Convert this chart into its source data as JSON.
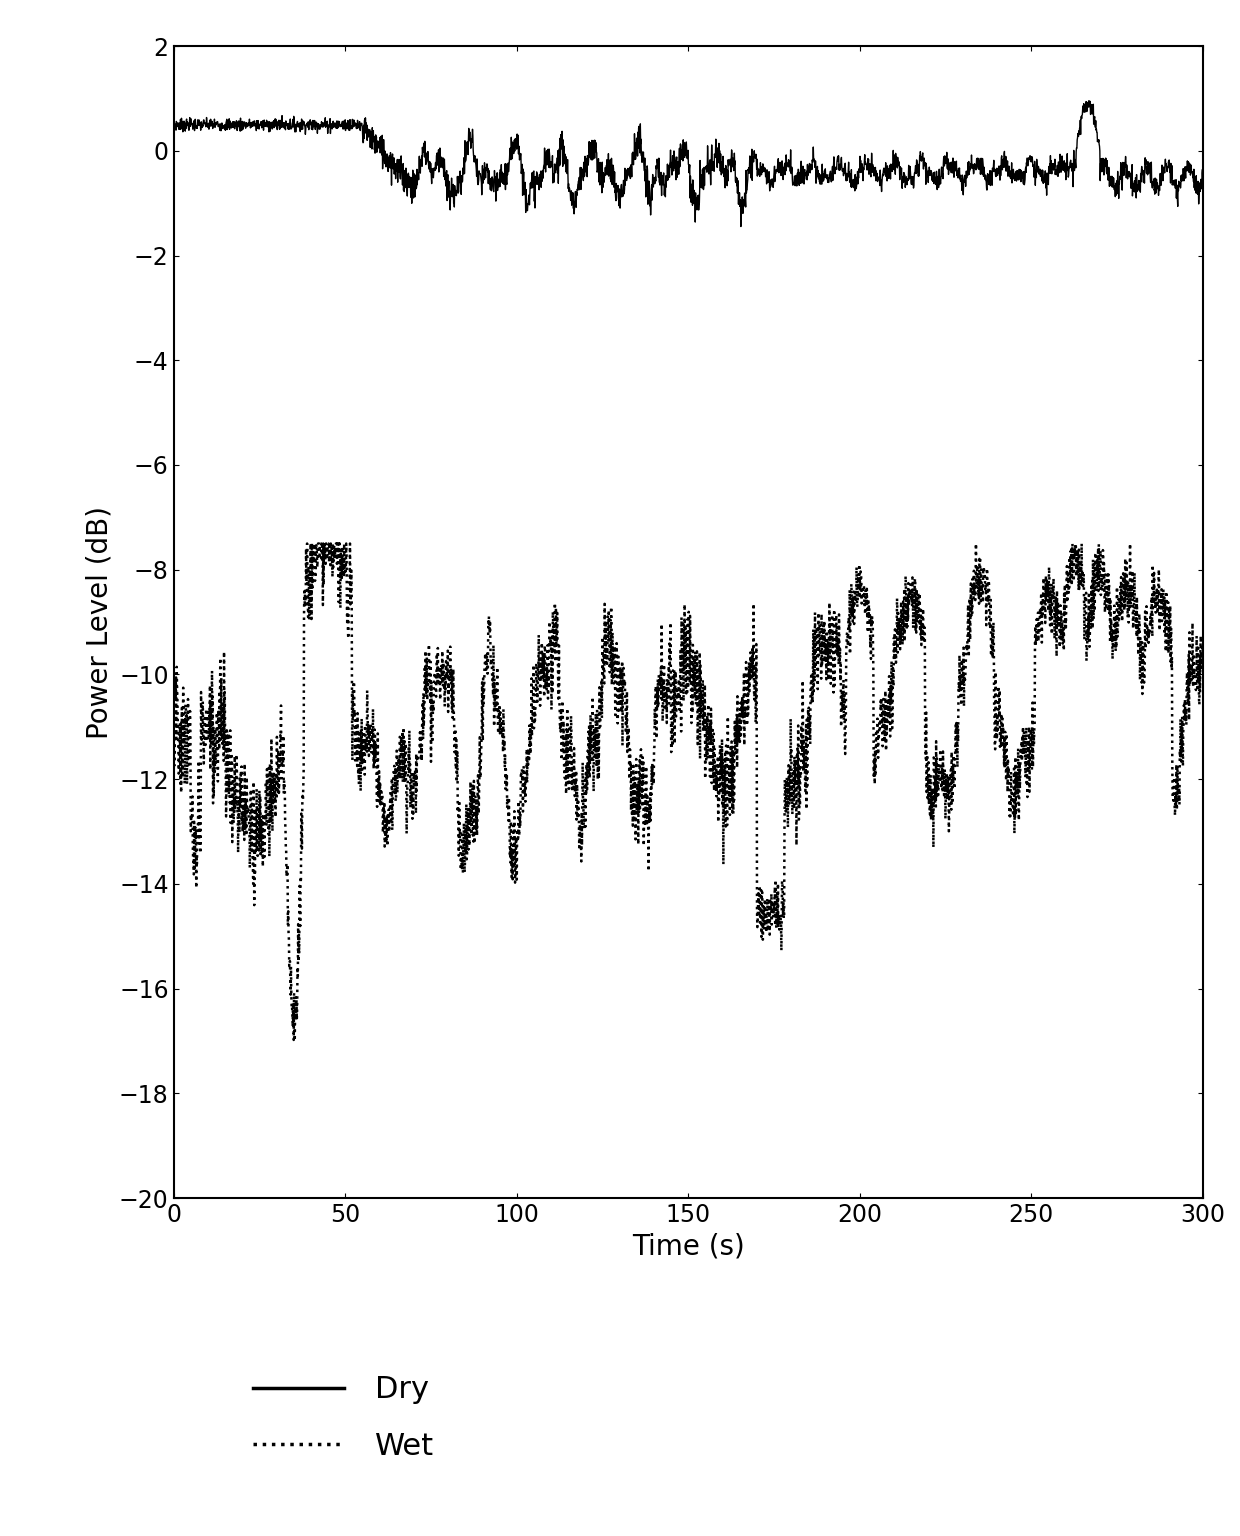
{
  "title": "",
  "xlabel": "Time (s)",
  "ylabel": "Power Level (dB)",
  "xlim": [
    0,
    300
  ],
  "ylim": [
    -20,
    2
  ],
  "yticks": [
    2,
    0,
    -2,
    -4,
    -6,
    -8,
    -10,
    -12,
    -14,
    -16,
    -18,
    -20
  ],
  "xticks": [
    0,
    50,
    100,
    150,
    200,
    250,
    300
  ],
  "background_color": "#ffffff",
  "line_color": "#000000",
  "dot_color": "#000000",
  "legend_dry": "Dry",
  "legend_wet": "Wet",
  "figsize": [
    12.4,
    15.36
  ],
  "dpi": 100
}
